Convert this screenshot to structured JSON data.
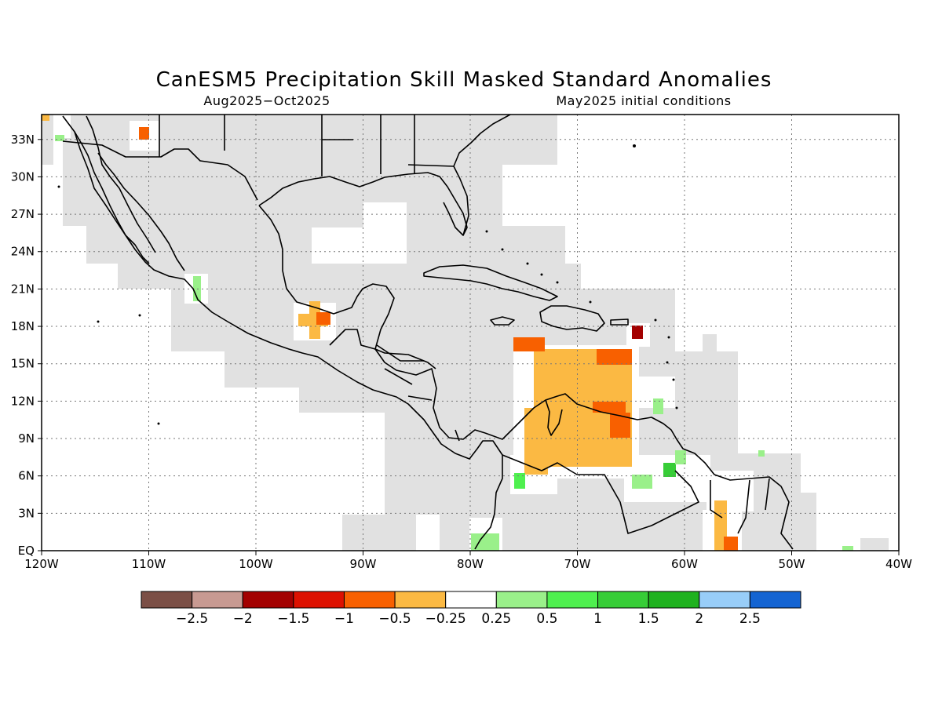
{
  "title": "CanESM5 Precipitation Skill Masked Standard Anomalies",
  "subtitle_left": "Aug2025−Oct2025",
  "subtitle_right": "May2025 initial conditions",
  "map": {
    "lon_range": [
      -120,
      -40
    ],
    "lat_range": [
      0,
      35
    ],
    "lon_ticks": [
      -120,
      -110,
      -100,
      -90,
      -80,
      -70,
      -60,
      -50,
      -40
    ],
    "lon_labels": [
      "120W",
      "110W",
      "100W",
      "90W",
      "80W",
      "70W",
      "60W",
      "50W",
      "40W"
    ],
    "lat_ticks": [
      0,
      3,
      6,
      9,
      12,
      15,
      18,
      21,
      24,
      27,
      30,
      33
    ],
    "lat_labels": [
      "EQ",
      "3N",
      "6N",
      "9N",
      "12N",
      "15N",
      "18N",
      "21N",
      "24N",
      "27N",
      "30N",
      "33N"
    ],
    "gridlines": "dotted",
    "mask_color": "#e1e1e1"
  },
  "colorbar": {
    "colors": [
      "#7b4f46",
      "#c89a92",
      "#a30000",
      "#dd1100",
      "#f86000",
      "#fbb943",
      "#ffffff",
      "#9af08a",
      "#4ff04f",
      "#37cd37",
      "#1fb21f",
      "#98cdf8",
      "#1464d2"
    ],
    "labels": [
      "−2.5",
      "−2",
      "−1.5",
      "−1",
      "−0.5",
      "−0.25",
      "0.25",
      "0.5",
      "1",
      "1.5",
      "2",
      "2.5"
    ]
  }
}
